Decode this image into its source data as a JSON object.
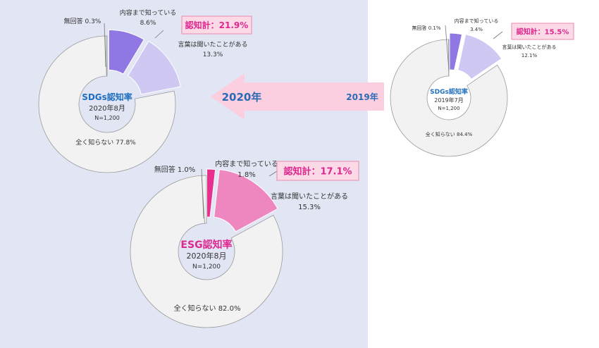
{
  "colors": {
    "panel_bg": "#e2e5f3",
    "ring_bg": "#f2f2f2",
    "ring_stroke": "#9a9a9a",
    "sdgs_title": "#1f6fc0",
    "esg_title": "#e0278f",
    "callout_text": "#e0278f",
    "callout_bg": "#fbd9e6",
    "callout_border": "#e88aae",
    "arrow_fill": "#fbcfe0",
    "arrow_text": "#2a6ab5"
  },
  "arrow": {
    "from_label": "2019年",
    "to_label": "2020年"
  },
  "chart_data": [
    {
      "type": "pie",
      "style": "exploded donut",
      "center_title": "SDGs認知率",
      "center_date": "2020年8月",
      "center_n": "N=1,200",
      "total_label": "認知計：21.9%",
      "slices": [
        {
          "label": "内容まで知っている",
          "value": 8.6,
          "value_text": "8.6%",
          "color": "#8f77e4"
        },
        {
          "label": "言葉は聞いたことがある",
          "value": 13.3,
          "value_text": "13.3%",
          "color": "#cfc8f2"
        },
        {
          "label": "全く知らない",
          "value": 77.8,
          "value_text": "77.8%",
          "color": "#f2f2f2"
        },
        {
          "label": "無回答",
          "value": 0.3,
          "value_text": "0.3%",
          "color": "#f2f2f2"
        }
      ]
    },
    {
      "type": "pie",
      "style": "exploded donut",
      "center_title": "SDGs認知率",
      "center_date": "2019年7月",
      "center_n": "N=1,200",
      "total_label": "認知計：15.5%",
      "slices": [
        {
          "label": "内容まで知っている",
          "value": 3.4,
          "value_text": "3.4%",
          "color": "#8f77e4"
        },
        {
          "label": "言葉は聞いたことがある",
          "value": 12.1,
          "value_text": "12.1%",
          "color": "#cfc8f2"
        },
        {
          "label": "全く知らない",
          "value": 84.4,
          "value_text": "84.4%",
          "color": "#f2f2f2"
        },
        {
          "label": "無回答",
          "value": 0.1,
          "value_text": "0.1%",
          "color": "#f2f2f2"
        }
      ]
    },
    {
      "type": "pie",
      "style": "exploded donut",
      "center_title": "ESG認知率",
      "center_date": "2020年8月",
      "center_n": "N=1,200",
      "total_label": "認知計：17.1%",
      "slices": [
        {
          "label": "内容まで知っている",
          "value": 1.8,
          "value_text": "1.8%",
          "color": "#e8308f"
        },
        {
          "label": "言葉は聞いたことがある",
          "value": 15.3,
          "value_text": "15.3%",
          "color": "#ee86bf"
        },
        {
          "label": "全く知らない",
          "value": 82.0,
          "value_text": "82.0%",
          "color": "#f2f2f2"
        },
        {
          "label": "無回答",
          "value": 1.0,
          "value_text": "1.0%",
          "color": "#f2f2f2"
        }
      ]
    }
  ]
}
